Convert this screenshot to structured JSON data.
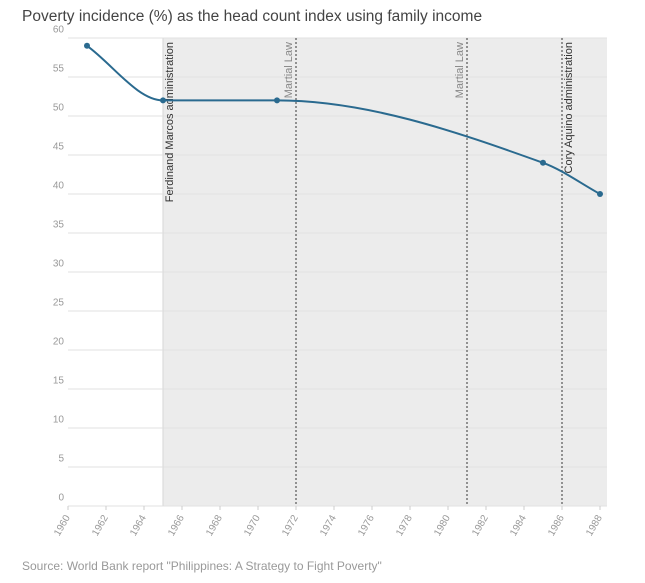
{
  "chart_data": {
    "type": "line",
    "title": "Poverty incidence (%) as the head count index using family income",
    "x": [
      1961,
      1965,
      1971,
      1985,
      1988
    ],
    "series": [
      {
        "name": "Poverty incidence",
        "color": "#2a6a8f",
        "values": [
          59,
          52,
          52,
          44,
          40
        ]
      }
    ],
    "xlim": [
      1960,
      1988
    ],
    "xticks": [
      1960,
      1962,
      1964,
      1966,
      1968,
      1970,
      1972,
      1974,
      1976,
      1978,
      1980,
      1982,
      1984,
      1986,
      1988
    ],
    "ylim": [
      0,
      60
    ],
    "yticks": [
      0,
      5,
      10,
      15,
      20,
      25,
      30,
      35,
      40,
      45,
      50,
      55,
      60
    ],
    "grid": true,
    "smooth": true,
    "shade_from": 1965,
    "annotations": [
      {
        "x": 1965,
        "label": "Ferdinand Marcos administration",
        "line_style": "solid",
        "color": "#333333"
      },
      {
        "x": 1972,
        "label": "Martial Law",
        "line_style": "dotted",
        "color": "#888888"
      },
      {
        "x": 1981,
        "label": "Martial Law",
        "line_style": "dotted",
        "color": "#888888"
      },
      {
        "x": 1986,
        "label": "Cory Aquino administration",
        "line_style": "dotted",
        "color": "#333333"
      }
    ],
    "source": "Source: World Bank report \"Philippines: A Strategy to Fight Poverty\""
  }
}
